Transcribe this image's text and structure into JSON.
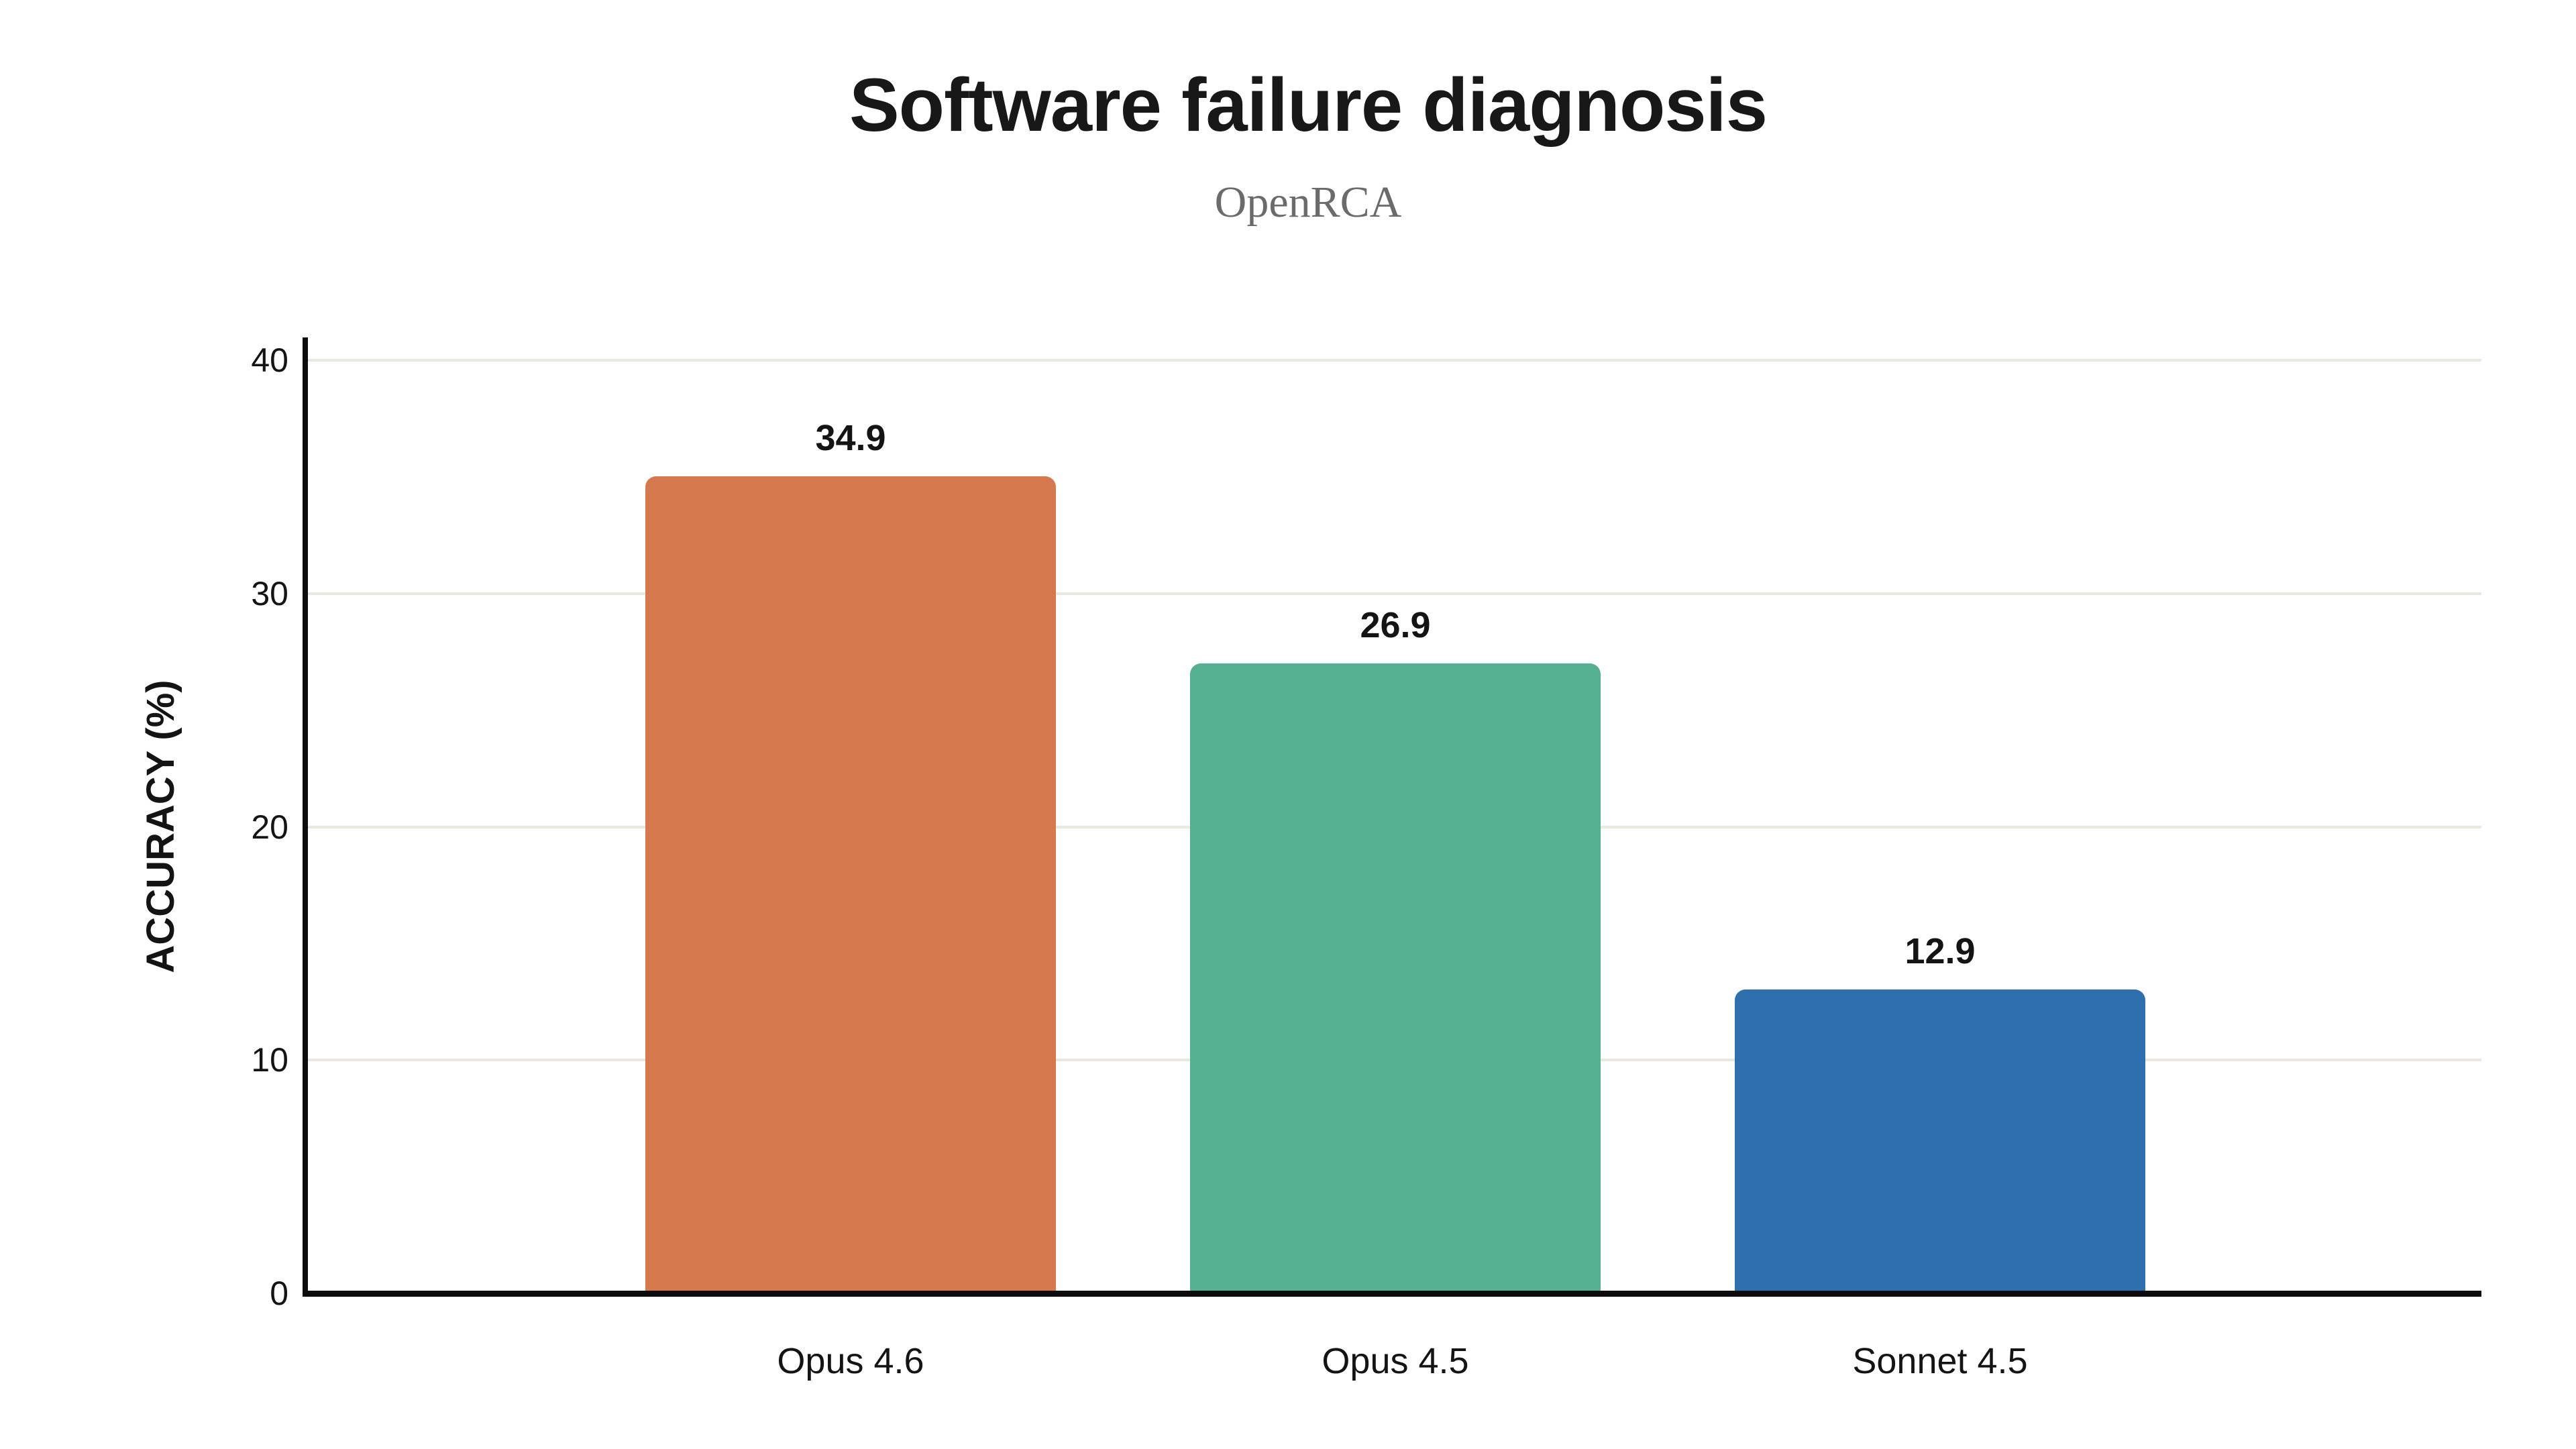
{
  "chart_data": {
    "type": "bar",
    "title": "Software failure diagnosis",
    "subtitle": "OpenRCA",
    "ylabel": "ACCURACY (%)",
    "xlabel": "",
    "categories": [
      "Opus 4.6",
      "Opus 4.5",
      "Sonnet 4.5"
    ],
    "values": [
      34.9,
      26.9,
      12.9
    ],
    "value_labels": [
      "34.9",
      "26.9",
      "12.9"
    ],
    "bar_colors": [
      "#D6794F",
      "#55B092",
      "#2F6FAD"
    ],
    "yticks": [
      0,
      10,
      20,
      30,
      40
    ],
    "ylim": [
      0,
      40
    ],
    "grid": "horizontal-only",
    "gridline_color": "#EAE7DC",
    "axis_color": "#0D0D0D",
    "background_color": "#FFFFFF",
    "legend": "none"
  }
}
